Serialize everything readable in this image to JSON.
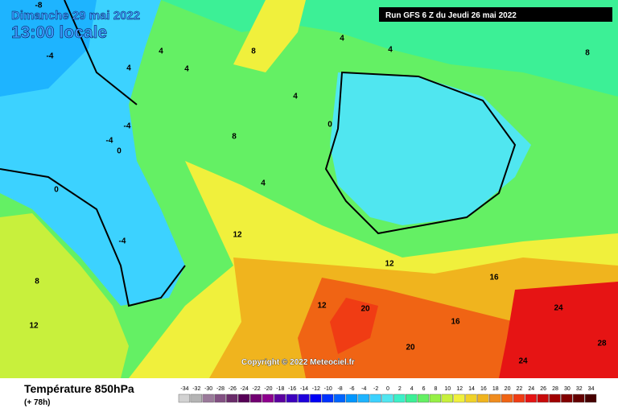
{
  "header": {
    "date": "Dimanche 29 mai 2022",
    "time": "13:00 locale",
    "run": "Run GFS 6 Z du Jeudi 26 mai 2022"
  },
  "copyright": "Copyright © 2022 Meteociel.fr",
  "footer": {
    "title": "Température 850hPa",
    "lead": "(+ 78h)"
  },
  "scale": {
    "levels": [
      -34,
      -32,
      -30,
      -28,
      -26,
      -24,
      -22,
      -20,
      -18,
      -16,
      -14,
      -12,
      -10,
      -8,
      -6,
      -4,
      -2,
      0,
      2,
      4,
      6,
      8,
      10,
      12,
      14,
      16,
      18,
      20,
      22,
      24,
      26,
      28,
      30,
      32,
      34
    ],
    "colors": [
      "#d2d2d2",
      "#b4b4b4",
      "#9a7a9a",
      "#825082",
      "#6a2c6a",
      "#560056",
      "#720072",
      "#8e008e",
      "#5c00a0",
      "#3c00be",
      "#1e00dc",
      "#0000f5",
      "#0032ff",
      "#0064ff",
      "#0096ff",
      "#1eb4ff",
      "#3cd2ff",
      "#50e6f0",
      "#3cf0c8",
      "#3cf096",
      "#64f064",
      "#96f046",
      "#c8f03c",
      "#f0f03c",
      "#f0d228",
      "#f0b41e",
      "#f08c1e",
      "#f06414",
      "#f03c14",
      "#e61414",
      "#c80a0a",
      "#a00000",
      "#820000",
      "#640000",
      "#460000"
    ]
  },
  "contour_labels": [
    "-8",
    "-4",
    "4",
    "4",
    "4",
    "8",
    "4",
    "4",
    "8",
    "4",
    "0",
    "-4",
    "-4",
    "0",
    "8",
    "4",
    "0",
    "-4",
    "12",
    "8",
    "12",
    "12",
    "20",
    "20",
    "16",
    "24",
    "28",
    "24",
    "12",
    "16"
  ]
}
